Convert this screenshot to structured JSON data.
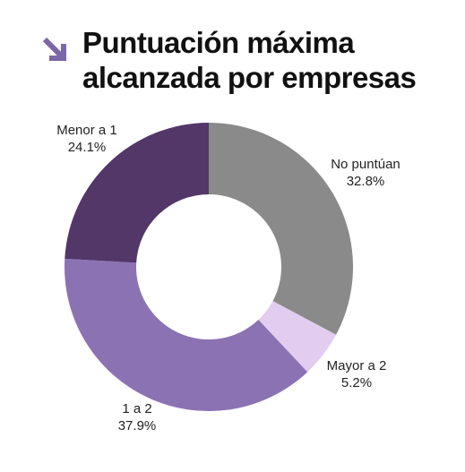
{
  "title": {
    "line1": "Puntuación máxima",
    "line2": "alcanzada por empresas"
  },
  "icon": {
    "name": "arrow-down-right-icon",
    "color": "#7b66a8"
  },
  "chart_data": {
    "type": "pie",
    "donut": true,
    "title": "Puntuación máxima alcanzada por empresas",
    "start_angle_deg": 0,
    "direction": "clockwise",
    "slices": [
      {
        "label": "No puntúan",
        "value": 32.8,
        "value_label": "32.8%",
        "color": "#8a8a8a"
      },
      {
        "label": "Mayor a 2",
        "value": 5.2,
        "value_label": "5.2%",
        "color": "#e2cdf1"
      },
      {
        "label": "1 a 2",
        "value": 37.9,
        "value_label": "37.9%",
        "color": "#8b73b3"
      },
      {
        "label": "Menor a 1",
        "value": 24.1,
        "value_label": "24.1%",
        "color": "#523768"
      }
    ]
  }
}
